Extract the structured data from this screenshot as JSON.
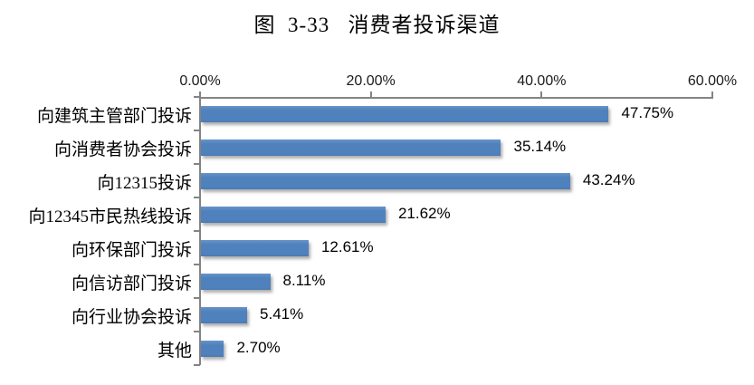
{
  "title": "图  3-33   消费者投诉渠道",
  "chart_data": {
    "type": "bar",
    "orientation": "horizontal",
    "title": "图 3-33 消费者投诉渠道",
    "categories": [
      "向建筑主管部门投诉",
      "向消费者协会投诉",
      "向12315投诉",
      "向12345市民热线投诉",
      "向环保部门投诉",
      "向信访部门投诉",
      "向行业协会投诉",
      "其他"
    ],
    "values": [
      47.75,
      35.14,
      43.24,
      21.62,
      12.61,
      8.11,
      5.41,
      2.7
    ],
    "data_labels": [
      "47.75%",
      "35.14%",
      "43.24%",
      "21.62%",
      "12.61%",
      "8.11%",
      "5.41%",
      "2.70%"
    ],
    "x_ticks": [
      "0.00%",
      "20.00%",
      "40.00%",
      "60.00%"
    ],
    "x_tick_values": [
      0,
      20,
      40,
      60
    ],
    "xlim": [
      0,
      60
    ],
    "xlabel": "",
    "ylabel": "",
    "grid": false,
    "legend": "none",
    "axis_position": "top",
    "bar_color": "#4F81BD",
    "axis_color": "#848484",
    "label_color": "#000000"
  }
}
